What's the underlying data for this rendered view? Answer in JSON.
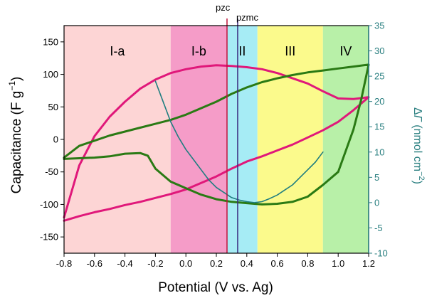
{
  "chart_data": {
    "type": "line",
    "x_axis": {
      "label": "Potential (V vs. Ag)",
      "range": [
        -0.8,
        1.2
      ],
      "ticks": [
        "-0.8",
        "-0.6",
        "-0.4",
        "-0.2",
        "0.0",
        "0.2",
        "0.4",
        "0.6",
        "0.8",
        "1.0",
        "1.2"
      ]
    },
    "y_left": {
      "label_parts": [
        "Capacitance (F g",
        "−1",
        ")"
      ],
      "range": [
        -175,
        175
      ],
      "ticks": [
        "150",
        "100",
        "50",
        "0",
        "-50",
        "-100",
        "-150"
      ]
    },
    "y_right": {
      "label_parts": [
        "Δ",
        "Γ",
        " (nmol cm",
        "−2",
        ")"
      ],
      "range": [
        -10,
        35
      ],
      "ticks": [
        "35",
        "30",
        "25",
        "20",
        "15",
        "10",
        "5",
        "0",
        "-5",
        "-10"
      ]
    },
    "regions": [
      {
        "label": "I-a",
        "from": -0.8,
        "to": -0.1,
        "color": "#fdd5d5"
      },
      {
        "label": "I-b",
        "from": -0.1,
        "to": 0.27,
        "color": "#f59cc8"
      },
      {
        "label": "II",
        "from": 0.27,
        "to": 0.47,
        "color": "#a6ecf5"
      },
      {
        "label": "III",
        "from": 0.47,
        "to": 0.9,
        "color": "#fbfa8c"
      },
      {
        "label": "IV",
        "from": 0.9,
        "to": 1.2,
        "color": "#b8f0a8"
      }
    ],
    "markers": [
      {
        "label": "pzc",
        "x": 0.27,
        "color": "#c0143c"
      },
      {
        "label": "pzmc",
        "x": 0.34,
        "color": "#3a2a80"
      }
    ],
    "series": [
      {
        "color": "#e0187a",
        "axis": "left",
        "x": [
          -0.8,
          -0.7,
          -0.6,
          -0.5,
          -0.4,
          -0.3,
          -0.2,
          -0.1,
          0.0,
          0.1,
          0.2,
          0.3,
          0.4,
          0.5,
          0.6,
          0.7,
          0.8,
          0.9,
          1.0,
          1.1,
          1.2,
          1.2,
          1.1,
          1.0,
          0.9,
          0.8,
          0.7,
          0.6,
          0.5,
          0.4,
          0.3,
          0.2,
          0.1,
          0.0,
          -0.1,
          -0.2,
          -0.3,
          -0.4,
          -0.5,
          -0.6,
          -0.7,
          -0.8
        ],
        "y": [
          -120,
          -40,
          5,
          35,
          58,
          78,
          92,
          102,
          108,
          112,
          114,
          113,
          111,
          108,
          102,
          94,
          86,
          74,
          63,
          62,
          65,
          65,
          45,
          27,
          14,
          3,
          -8,
          -17,
          -26,
          -34,
          -45,
          -57,
          -67,
          -77,
          -84,
          -90,
          -96,
          -101,
          -107,
          -112,
          -118,
          -125
        ]
      },
      {
        "color": "#2a7a14",
        "axis": "left",
        "x": [
          -0.8,
          -0.7,
          -0.6,
          -0.5,
          -0.4,
          -0.3,
          -0.2,
          -0.1,
          0.0,
          0.1,
          0.2,
          0.3,
          0.4,
          0.5,
          0.6,
          0.7,
          0.8,
          0.9,
          1.0,
          1.1,
          1.2,
          1.2,
          1.15,
          1.1,
          1.0,
          0.9,
          0.8,
          0.7,
          0.6,
          0.5,
          0.4,
          0.3,
          0.2,
          0.1,
          0.0,
          -0.1,
          -0.2,
          -0.25,
          -0.3,
          -0.4,
          -0.5,
          -0.6,
          -0.7,
          -0.8
        ],
        "y": [
          -28,
          -10,
          -2,
          6,
          12,
          18,
          24,
          30,
          38,
          48,
          58,
          70,
          80,
          88,
          94,
          99,
          103,
          106,
          109,
          112,
          115,
          115,
          60,
          15,
          -50,
          -70,
          -88,
          -96,
          -99,
          -100,
          -98,
          -96,
          -92,
          -85,
          -75,
          -65,
          -45,
          -25,
          -21,
          -22,
          -26,
          -28,
          -29,
          -30
        ]
      },
      {
        "color": "#1f7e80",
        "axis": "right",
        "x": [
          -0.2,
          -0.15,
          -0.1,
          -0.05,
          0.0,
          0.05,
          0.1,
          0.15,
          0.2,
          0.25,
          0.3,
          0.35,
          0.4,
          0.45,
          0.5,
          0.55,
          0.6,
          0.65,
          0.7,
          0.75,
          0.8,
          0.85,
          0.9
        ],
        "y": [
          24,
          20,
          16,
          13,
          10.5,
          8.5,
          6.5,
          4.5,
          3,
          2,
          1,
          0.5,
          0.2,
          0,
          0.2,
          0.8,
          1.5,
          2.5,
          3.5,
          5,
          6.5,
          8,
          10
        ]
      }
    ]
  }
}
